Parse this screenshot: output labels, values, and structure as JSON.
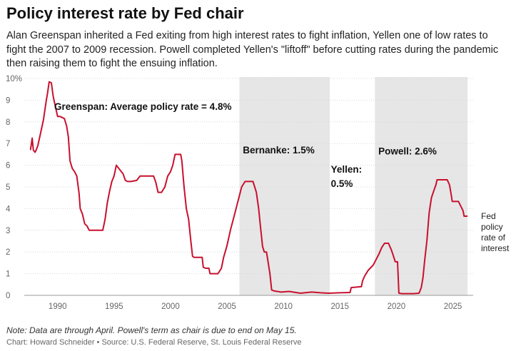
{
  "header": {
    "title": "Policy interest rate by Fed chair",
    "subtitle": "Alan Greenspan inherited a Fed exiting from high interest rates to fight inflation, Yellen one of low rates to fight the 2007 to 2009 recession. Powell completed Yellen's \"liftoff\" before cutting rates during the pandemic then raising them to fight the ensuing inflation."
  },
  "footer": {
    "note": "Note: Data are through April. Powell's term as chair is due to end on May 15.",
    "credit": "Chart: Howard Schneider • Source: U.S. Federal Reserve, St. Louis Federal Reserve"
  },
  "colors": {
    "line": "#c8102e",
    "shade": "#e6e6e6",
    "grid": "#d9d9d9"
  },
  "chart_data": {
    "type": "line",
    "xlim": [
      1987.3,
      2026.8
    ],
    "ylim": [
      0,
      10
    ],
    "x_ticks": [
      1990,
      1995,
      2000,
      2005,
      2010,
      2015,
      2020,
      2025
    ],
    "x_tick_labels": [
      "1990",
      "1995",
      "2000",
      "2005",
      "2010",
      "2015",
      "2020",
      "2025"
    ],
    "y_ticks": [
      0,
      1,
      2,
      3,
      4,
      5,
      6,
      7,
      8,
      9,
      10
    ],
    "y_tick_labels": [
      "0",
      "1",
      "2",
      "3",
      "4",
      "5",
      "6",
      "7",
      "8",
      "9",
      "10%"
    ],
    "grid": true,
    "shaded_periods": [
      {
        "start": 2006.1,
        "end": 2014.1
      },
      {
        "start": 2018.1,
        "end": 2026.3
      }
    ],
    "annotations": [
      {
        "text": "Greenspan: Average policy rate = 4.8%",
        "x": 1989.7,
        "y": 8.55
      },
      {
        "text": "Bernanke: 1.5%",
        "x": 2006.4,
        "y": 6.55
      },
      {
        "text": "Yellen:",
        "x": 2014.2,
        "y": 5.65
      },
      {
        "text": "0.5%",
        "x": 2014.2,
        "y": 5.0
      },
      {
        "text": "Powell: 2.6%",
        "x": 2018.4,
        "y": 6.5
      }
    ],
    "line_label": [
      "Fed",
      "policy",
      "rate of",
      "interest"
    ],
    "series": [
      {
        "x": [
          1987.6,
          1987.75,
          1987.85,
          1988.0,
          1988.1,
          1988.25,
          1988.5,
          1988.75,
          1989.0,
          1989.1,
          1989.25,
          1989.45,
          1989.6,
          1989.8,
          1990.0,
          1990.2,
          1990.4,
          1990.6,
          1990.8,
          1990.95,
          1991.1,
          1991.3,
          1991.5,
          1991.7,
          1991.9,
          1992.0,
          1992.2,
          1992.4,
          1992.6,
          1992.8,
          1993.0,
          1993.5,
          1994.0,
          1994.2,
          1994.4,
          1994.6,
          1994.8,
          1995.0,
          1995.2,
          1995.5,
          1995.8,
          1996.0,
          1996.2,
          1996.5,
          1997.0,
          1997.3,
          1997.6,
          1998.0,
          1998.5,
          1998.7,
          1998.9,
          1999.2,
          1999.5,
          1999.75,
          2000.0,
          2000.2,
          2000.4,
          2000.9,
          2001.0,
          2001.2,
          2001.4,
          2001.6,
          2001.8,
          2001.95,
          2002.1,
          2002.5,
          2002.8,
          2002.9,
          2003.1,
          2003.4,
          2003.5,
          2003.8,
          2004.2,
          2004.5,
          2004.7,
          2005.0,
          2005.3,
          2005.6,
          2006.0,
          2006.3,
          2006.6,
          2007.0,
          2007.3,
          2007.6,
          2007.8,
          2008.0,
          2008.15,
          2008.3,
          2008.5,
          2008.8,
          2008.95,
          2009.2,
          2009.8,
          2010.5,
          2011.5,
          2012.5,
          2013.3,
          2014.0,
          2015.0,
          2015.9,
          2016.0,
          2016.9,
          2017.0,
          2017.2,
          2017.5,
          2017.95,
          2018.25,
          2018.45,
          2018.7,
          2018.95,
          2019.3,
          2019.55,
          2019.75,
          2019.9,
          2020.1,
          2020.22,
          2020.5,
          2021.5,
          2022.0,
          2022.2,
          2022.35,
          2022.5,
          2022.7,
          2022.9,
          2023.1,
          2023.3,
          2023.5,
          2023.6,
          2024.0,
          2024.5,
          2024.7,
          2024.8,
          2024.95,
          2025.5,
          2025.9,
          2026.0,
          2026.3
        ],
        "y": [
          6.7,
          7.25,
          6.7,
          6.6,
          6.7,
          6.9,
          7.5,
          8.1,
          9.0,
          9.3,
          9.85,
          9.8,
          9.2,
          8.7,
          8.25,
          8.25,
          8.2,
          8.15,
          7.8,
          7.3,
          6.2,
          5.85,
          5.7,
          5.5,
          4.7,
          4.0,
          3.75,
          3.3,
          3.2,
          3.0,
          3.0,
          3.0,
          3.0,
          3.5,
          4.25,
          4.8,
          5.25,
          5.5,
          6.0,
          5.8,
          5.6,
          5.3,
          5.25,
          5.25,
          5.3,
          5.5,
          5.5,
          5.5,
          5.5,
          5.2,
          4.75,
          4.75,
          5.0,
          5.5,
          5.7,
          6.0,
          6.5,
          6.5,
          6.2,
          5.0,
          4.0,
          3.5,
          2.5,
          1.8,
          1.75,
          1.75,
          1.75,
          1.3,
          1.25,
          1.25,
          1.0,
          1.0,
          1.0,
          1.25,
          1.75,
          2.3,
          3.0,
          3.6,
          4.4,
          5.0,
          5.25,
          5.25,
          5.25,
          4.75,
          4.0,
          3.0,
          2.25,
          2.0,
          2.0,
          1.0,
          0.25,
          0.2,
          0.15,
          0.18,
          0.1,
          0.15,
          0.12,
          0.1,
          0.12,
          0.13,
          0.36,
          0.4,
          0.66,
          0.9,
          1.15,
          1.4,
          1.7,
          1.9,
          2.2,
          2.4,
          2.4,
          2.1,
          1.8,
          1.55,
          1.55,
          0.1,
          0.08,
          0.08,
          0.1,
          0.35,
          0.8,
          1.6,
          2.5,
          3.8,
          4.5,
          4.8,
          5.1,
          5.33,
          5.33,
          5.33,
          5.1,
          4.8,
          4.33,
          4.33,
          3.9,
          3.65,
          3.65
        ]
      }
    ]
  }
}
